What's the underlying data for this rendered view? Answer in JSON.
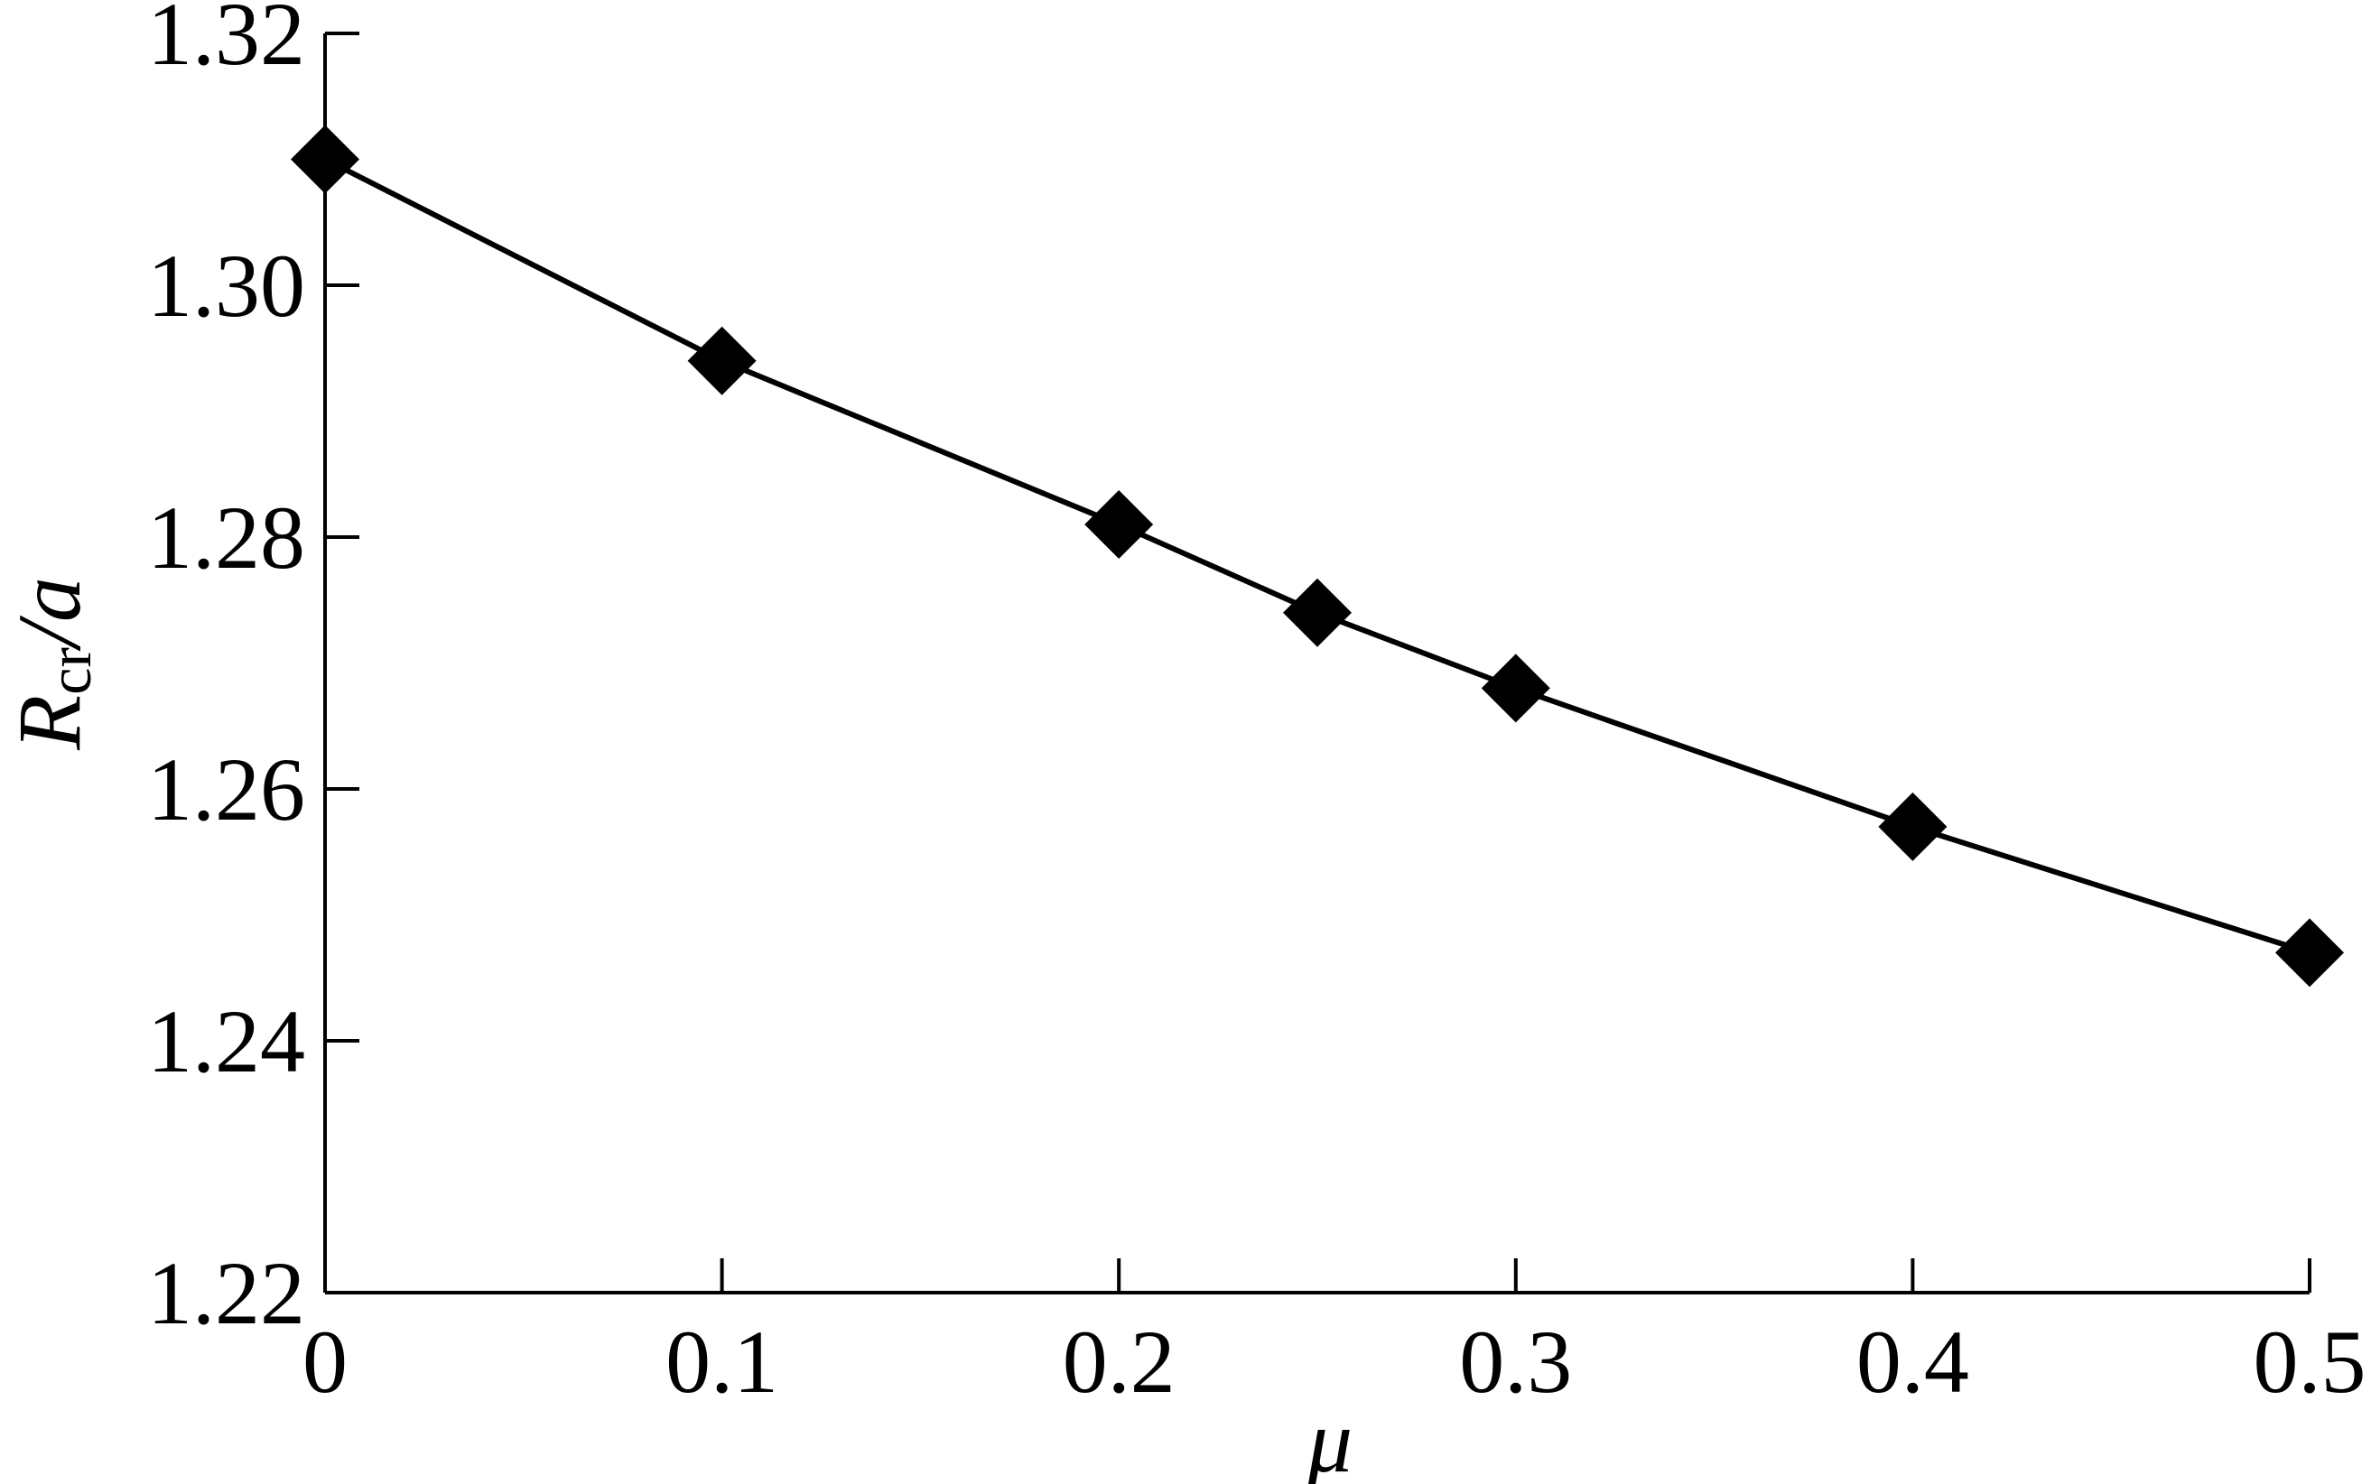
{
  "chart_data": {
    "type": "line",
    "x": [
      0,
      0.1,
      0.2,
      0.25,
      0.3,
      0.4,
      0.5
    ],
    "series": [
      {
        "color": "#000000",
        "values": [
          1.31,
          1.294,
          1.281,
          1.274,
          1.268,
          1.257,
          1.247
        ]
      }
    ],
    "xlim": [
      0,
      0.5
    ],
    "xticks": [
      0,
      0.1,
      0.2,
      0.3,
      0.4,
      0.5
    ],
    "ylim": [
      1.22,
      1.32
    ],
    "yticks": [
      1.22,
      1.24,
      1.26,
      1.28,
      {
        "value": 1.3,
        "label": "1.30"
      },
      1.32
    ],
    "xlabel": "μ",
    "ylabel": {
      "main": "R",
      "sub": "cr",
      "rest": "/a"
    },
    "grid": false
  }
}
